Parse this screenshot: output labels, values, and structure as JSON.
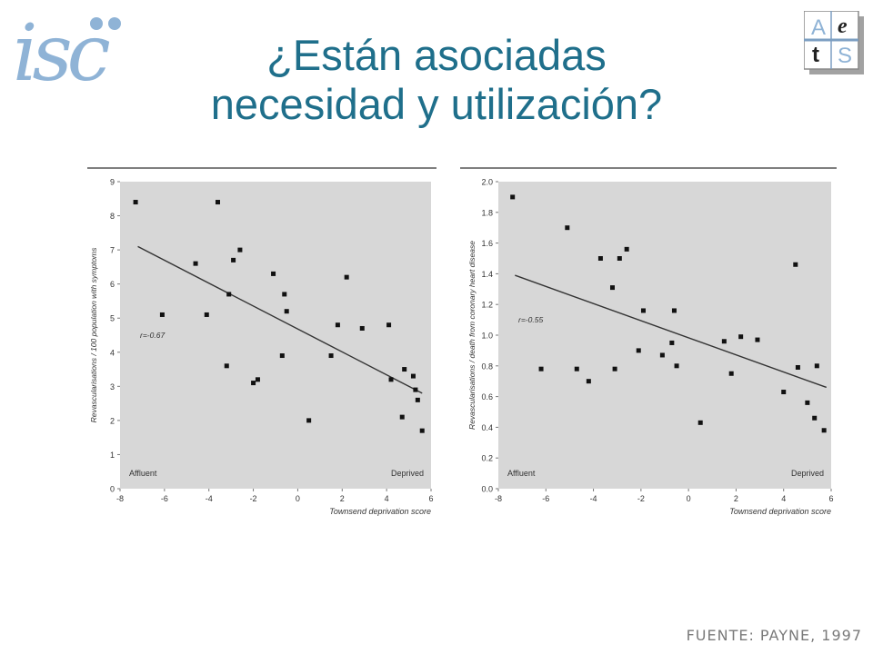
{
  "title_line1": "¿Están asociadas",
  "title_line2": "necesidad y utilización?",
  "logo_left_text": "isc",
  "logo_right_letters": [
    "A",
    "e",
    "t",
    "S"
  ],
  "source": "FUENTE: PAYNE, 1997",
  "colors": {
    "title": "#1f6f8b",
    "plot_background": "#d7d7d7",
    "logo_blue": "#8fb3d6",
    "points": "#111111"
  },
  "chart_data": [
    {
      "type": "scatter",
      "title": "",
      "xlabel": "Townsend deprivation score",
      "ylabel": "Revascularisations / 100 population with symptoms",
      "xlim": [
        -8,
        6
      ],
      "ylim": [
        0,
        9
      ],
      "xticks": [
        -8,
        -6,
        -4,
        -2,
        0,
        2,
        4,
        6
      ],
      "yticks": [
        0,
        1,
        2,
        3,
        4,
        5,
        6,
        7,
        8,
        9
      ],
      "annotation": "r=-0.67",
      "corner_labels": [
        "Affluent",
        "Deprived"
      ],
      "grid": false,
      "trendline": {
        "x": [
          -7.2,
          5.6
        ],
        "y": [
          7.1,
          2.8
        ]
      },
      "x": [
        -7.3,
        -6.1,
        -4.6,
        -4.1,
        -3.6,
        -3.2,
        -3.1,
        -2.9,
        -2.6,
        -2.0,
        -1.8,
        -1.1,
        -0.7,
        -0.6,
        -0.5,
        0.5,
        1.5,
        1.8,
        2.2,
        2.9,
        4.1,
        4.2,
        4.7,
        4.8,
        5.2,
        5.3,
        5.4,
        5.6
      ],
      "y": [
        8.4,
        5.1,
        6.6,
        5.1,
        8.4,
        3.6,
        5.7,
        6.7,
        7.0,
        3.1,
        3.2,
        6.3,
        3.9,
        5.7,
        5.2,
        2.0,
        3.9,
        4.8,
        6.2,
        4.7,
        4.8,
        3.2,
        2.1,
        3.5,
        3.3,
        2.9,
        2.6,
        1.7
      ]
    },
    {
      "type": "scatter",
      "title": "",
      "xlabel": "Townsend deprivation score",
      "ylabel": "Revascularisations / death from coronary heart disease",
      "xlim": [
        -8,
        6
      ],
      "ylim": [
        0,
        2.0
      ],
      "xticks": [
        -8,
        -6,
        -4,
        -2,
        0,
        2,
        4,
        6
      ],
      "yticks": [
        0,
        0.2,
        0.4,
        0.6,
        0.8,
        1.0,
        1.2,
        1.4,
        1.6,
        1.8,
        2.0
      ],
      "annotation": "r=-0.55",
      "corner_labels": [
        "Affluent",
        "Deprived"
      ],
      "grid": false,
      "trendline": {
        "x": [
          -7.3,
          5.8
        ],
        "y": [
          1.39,
          0.66
        ]
      },
      "x": [
        -7.4,
        -6.2,
        -5.1,
        -4.7,
        -4.2,
        -3.7,
        -3.2,
        -3.1,
        -2.9,
        -2.6,
        -2.1,
        -1.9,
        -1.1,
        -0.7,
        -0.6,
        -0.5,
        0.5,
        1.5,
        1.8,
        2.2,
        2.9,
        4.0,
        4.5,
        4.6,
        5.0,
        5.3,
        5.4,
        5.7
      ],
      "y": [
        1.9,
        0.78,
        1.7,
        0.78,
        0.7,
        1.5,
        1.31,
        0.78,
        1.5,
        1.56,
        0.9,
        1.16,
        0.87,
        0.95,
        1.16,
        0.8,
        0.43,
        0.96,
        0.75,
        0.99,
        0.97,
        0.63,
        1.46,
        0.79,
        0.56,
        0.46,
        0.8,
        0.38
      ]
    }
  ]
}
